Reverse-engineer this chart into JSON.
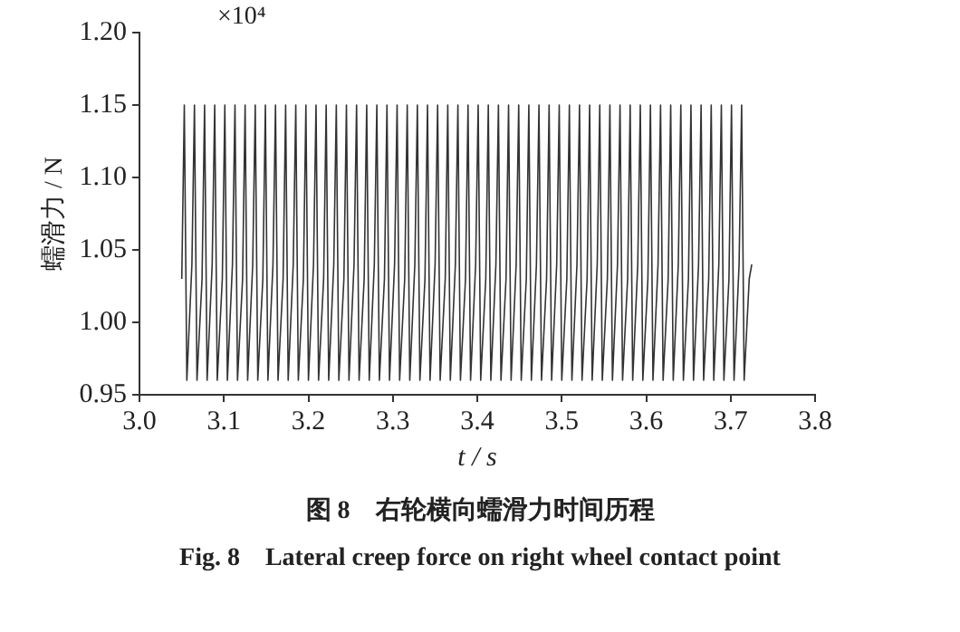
{
  "chart_data": {
    "type": "line",
    "xlabel": "t / s",
    "ylabel": "蠕滑力 / N",
    "annotations": [
      "×10⁴",
      "图 8　右轮横向蠕滑力时间历程",
      "Fig. 8　Lateral creep force on right wheel contact point"
    ],
    "xlim": [
      3.0,
      3.8
    ],
    "xticks": [
      {
        "value": 3,
        "label": "3.0"
      },
      3.1,
      3.2,
      3.3,
      3.4,
      3.5,
      3.6,
      3.7,
      3.8
    ],
    "ylim": [
      0.95,
      1.2
    ],
    "yticks": [
      0.95,
      {
        "value": 1,
        "label": "1.00"
      },
      1.05,
      {
        "value": 1.1,
        "label": "1.10"
      },
      1.15,
      {
        "value": 1.2,
        "label": "1.20"
      }
    ],
    "grid": false,
    "legend": false,
    "marker": "none",
    "line_style": "solid",
    "series": [
      {
        "color": "#333333",
        "x": [
          3.05,
          3.053,
          3.056,
          3.062,
          3.065,
          3.068,
          3.074,
          3.077,
          3.08,
          3.086,
          3.089,
          3.092,
          3.098,
          3.101,
          3.104,
          3.11,
          3.113,
          3.116,
          3.122,
          3.125,
          3.128,
          3.134,
          3.137,
          3.14,
          3.146,
          3.149,
          3.152,
          3.158,
          3.161,
          3.164,
          3.17,
          3.173,
          3.176,
          3.182,
          3.185,
          3.188,
          3.194,
          3.197,
          3.2,
          3.206,
          3.209,
          3.212,
          3.218,
          3.221,
          3.224,
          3.23,
          3.233,
          3.236,
          3.242,
          3.245,
          3.248,
          3.254,
          3.257,
          3.26,
          3.266,
          3.269,
          3.272,
          3.278,
          3.281,
          3.284,
          3.29,
          3.293,
          3.296,
          3.302,
          3.305,
          3.308,
          3.314,
          3.317,
          3.32,
          3.326,
          3.329,
          3.332,
          3.338,
          3.341,
          3.344,
          3.35,
          3.353,
          3.356,
          3.362,
          3.365,
          3.368,
          3.374,
          3.377,
          3.38,
          3.386,
          3.389,
          3.392,
          3.398,
          3.401,
          3.404,
          3.41,
          3.413,
          3.416,
          3.422,
          3.425,
          3.428,
          3.434,
          3.437,
          3.44,
          3.446,
          3.449,
          3.452,
          3.458,
          3.461,
          3.464,
          3.47,
          3.473,
          3.476,
          3.482,
          3.485,
          3.488,
          3.494,
          3.497,
          3.5,
          3.506,
          3.509,
          3.512,
          3.518,
          3.521,
          3.524,
          3.53,
          3.533,
          3.536,
          3.542,
          3.545,
          3.548,
          3.554,
          3.557,
          3.56,
          3.566,
          3.569,
          3.572,
          3.578,
          3.581,
          3.584,
          3.59,
          3.593,
          3.596,
          3.602,
          3.605,
          3.608,
          3.614,
          3.617,
          3.62,
          3.626,
          3.629,
          3.632,
          3.638,
          3.641,
          3.644,
          3.65,
          3.653,
          3.656,
          3.662,
          3.665,
          3.668,
          3.674,
          3.677,
          3.68,
          3.686,
          3.689,
          3.692,
          3.698,
          3.701,
          3.704,
          3.71,
          3.713,
          3.716,
          3.722,
          3.725
        ],
        "values": [
          1.03,
          1.15,
          0.96,
          1.04,
          1.15,
          0.96,
          1.03,
          1.15,
          0.96,
          1.04,
          1.15,
          0.96,
          1.03,
          1.15,
          0.96,
          1.04,
          1.15,
          0.96,
          1.03,
          1.15,
          0.96,
          1.04,
          1.15,
          0.96,
          1.03,
          1.15,
          0.96,
          1.04,
          1.15,
          0.96,
          1.03,
          1.15,
          0.96,
          1.04,
          1.15,
          0.96,
          1.03,
          1.15,
          0.96,
          1.04,
          1.15,
          0.96,
          1.03,
          1.15,
          0.96,
          1.04,
          1.15,
          0.96,
          1.03,
          1.15,
          0.96,
          1.04,
          1.15,
          0.96,
          1.03,
          1.15,
          0.96,
          1.04,
          1.15,
          0.96,
          1.03,
          1.15,
          0.96,
          1.04,
          1.15,
          0.96,
          1.03,
          1.15,
          0.96,
          1.04,
          1.15,
          0.96,
          1.03,
          1.15,
          0.96,
          1.04,
          1.15,
          0.96,
          1.03,
          1.15,
          0.96,
          1.04,
          1.15,
          0.96,
          1.03,
          1.15,
          0.96,
          1.04,
          1.15,
          0.96,
          1.03,
          1.15,
          0.96,
          1.04,
          1.15,
          0.96,
          1.03,
          1.15,
          0.96,
          1.04,
          1.15,
          0.96,
          1.03,
          1.15,
          0.96,
          1.04,
          1.15,
          0.96,
          1.03,
          1.15,
          0.96,
          1.04,
          1.15,
          0.96,
          1.03,
          1.15,
          0.96,
          1.04,
          1.15,
          0.96,
          1.03,
          1.15,
          0.96,
          1.04,
          1.15,
          0.96,
          1.03,
          1.15,
          0.96,
          1.04,
          1.15,
          0.96,
          1.03,
          1.15,
          0.96,
          1.04,
          1.15,
          0.96,
          1.03,
          1.15,
          0.96,
          1.04,
          1.15,
          0.96,
          1.03,
          1.15,
          0.96,
          1.04,
          1.15,
          0.96,
          1.03,
          1.15,
          0.96,
          1.04,
          1.15,
          0.96,
          1.03,
          1.15,
          0.96,
          1.04,
          1.15,
          0.96,
          1.03,
          1.15,
          0.96,
          1.04,
          1.15,
          0.96,
          1.03,
          1.04
        ]
      }
    ]
  }
}
